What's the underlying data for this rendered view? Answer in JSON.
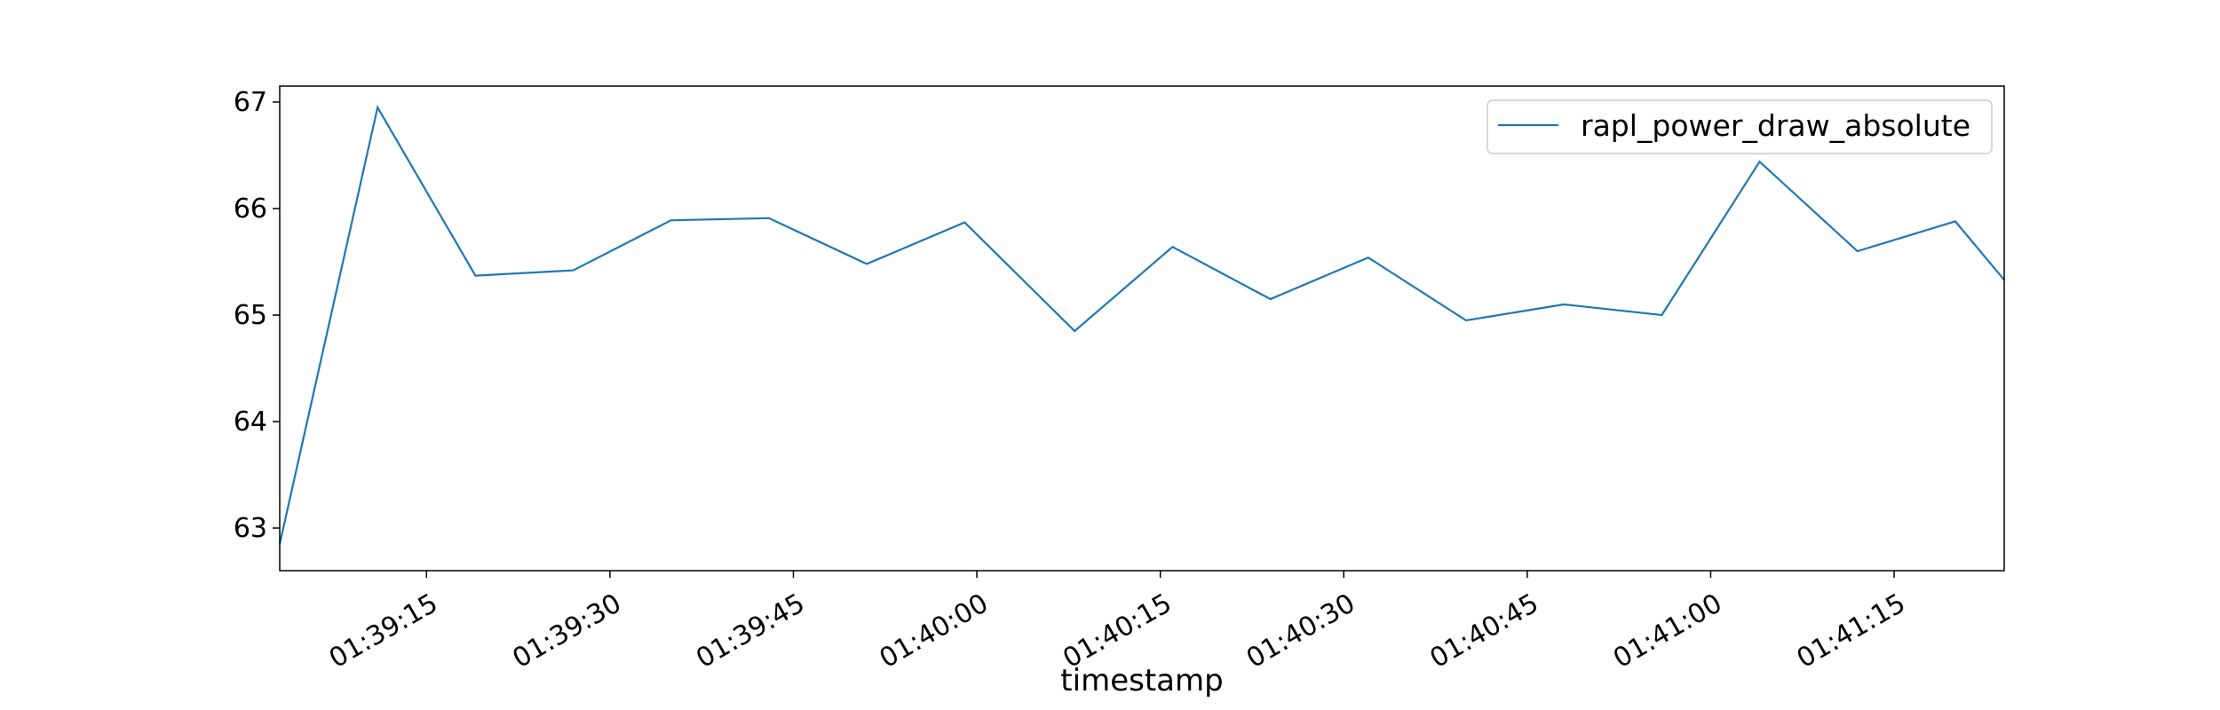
{
  "chart_data": {
    "type": "line",
    "title": "",
    "xlabel": "timestamp",
    "ylabel": "",
    "x_unit": "time (HH:MM:SS)",
    "x_range": [
      "01:39:03",
      "01:41:24"
    ],
    "ylim": [
      62.6,
      67.15
    ],
    "grid": false,
    "legend_position": "top-right",
    "x_ticks": [
      "01:39:15",
      "01:39:30",
      "01:39:45",
      "01:40:00",
      "01:40:15",
      "01:40:30",
      "01:40:45",
      "01:41:00",
      "01:41:15"
    ],
    "y_ticks": [
      63,
      64,
      65,
      66,
      67
    ],
    "series": [
      {
        "name": "rapl_power_draw_absolute",
        "color": "#1f77b4",
        "x": [
          "01:39:03",
          "01:39:11",
          "01:39:19",
          "01:39:27",
          "01:39:35",
          "01:39:43",
          "01:39:51",
          "01:39:59",
          "01:40:08",
          "01:40:16",
          "01:40:24",
          "01:40:32",
          "01:40:40",
          "01:40:48",
          "01:40:56",
          "01:41:04",
          "01:41:12",
          "01:41:20",
          "01:41:24"
        ],
        "y": [
          62.85,
          66.95,
          65.37,
          65.42,
          65.89,
          65.91,
          65.48,
          65.87,
          64.85,
          65.64,
          65.15,
          65.54,
          64.95,
          65.1,
          65.0,
          66.44,
          65.6,
          65.88,
          65.33
        ]
      }
    ]
  }
}
